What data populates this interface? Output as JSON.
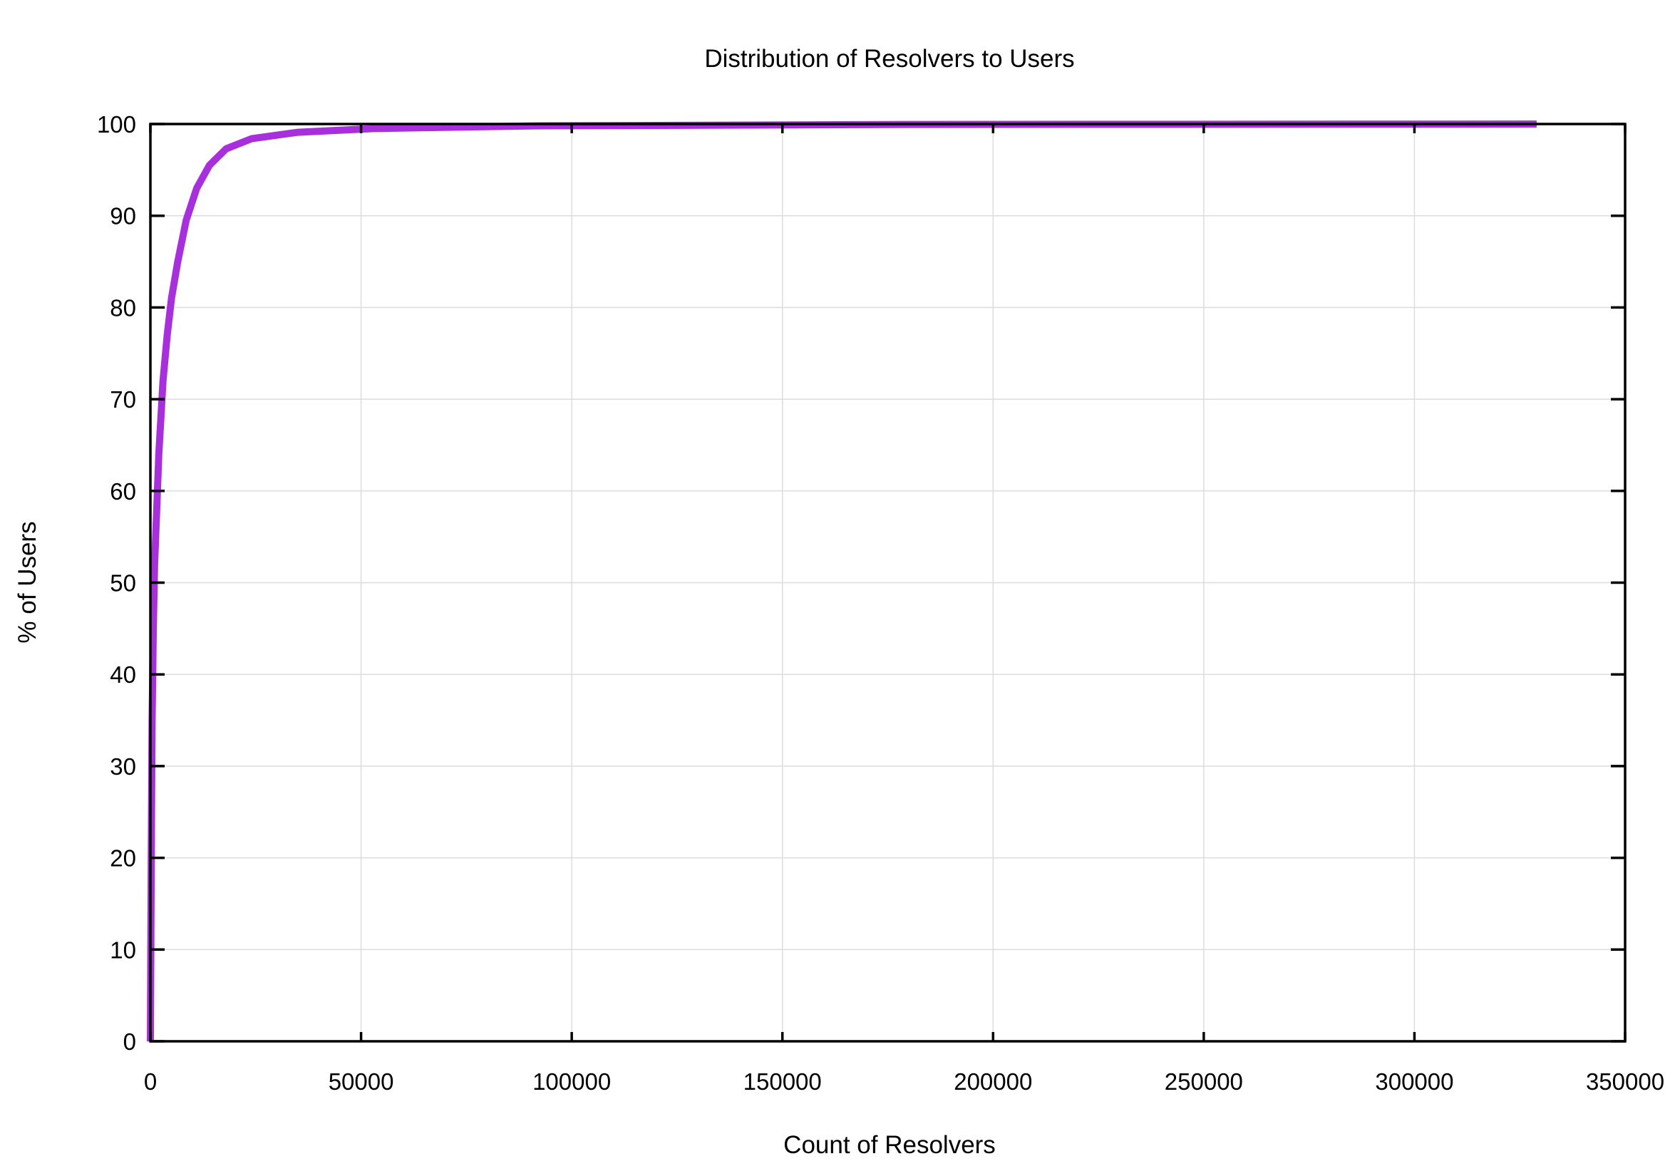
{
  "chart_data": {
    "type": "line",
    "title": "Distribution of Resolvers to Users",
    "xlabel": "Count of Resolvers",
    "ylabel": "% of Users",
    "xlim": [
      0,
      350000
    ],
    "ylim": [
      0,
      100
    ],
    "xticks": [
      0,
      50000,
      100000,
      150000,
      200000,
      250000,
      300000,
      350000
    ],
    "yticks": [
      0,
      10,
      20,
      30,
      40,
      50,
      60,
      70,
      80,
      90,
      100
    ],
    "grid": true,
    "legend": "none",
    "series": [
      {
        "color": "#a830dc",
        "x": [
          0,
          100,
          200,
          400,
          700,
          1000,
          1500,
          2000,
          3000,
          4000,
          5000,
          6500,
          8500,
          11000,
          14000,
          18000,
          24000,
          35000,
          53000,
          91000,
          180000,
          329000
        ],
        "y": [
          0,
          10,
          20,
          35,
          45,
          52,
          58,
          64,
          72,
          77,
          81,
          85,
          89.5,
          93,
          95.5,
          97.3,
          98.4,
          99.1,
          99.5,
          99.8,
          99.95,
          100
        ]
      }
    ]
  }
}
